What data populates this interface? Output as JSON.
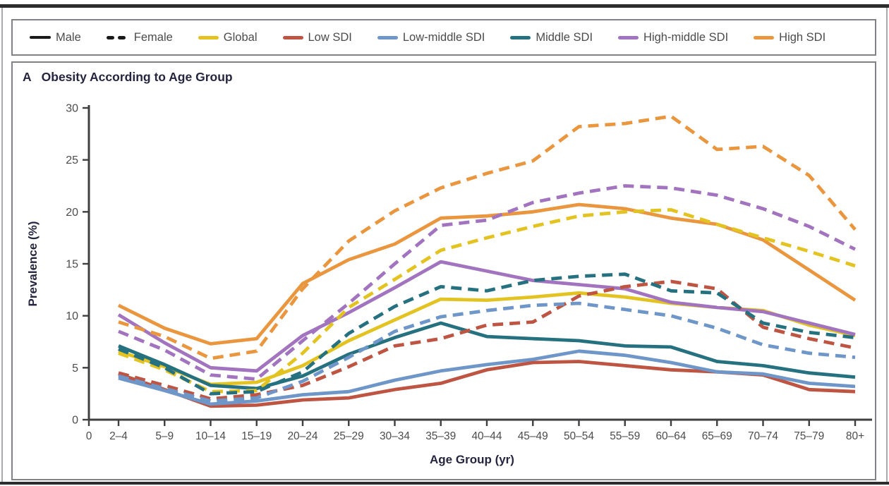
{
  "figure": {
    "panel_letter": "A",
    "panel_title": "Obesity According to Age Group"
  },
  "legend": {
    "items": [
      {
        "label": "Male",
        "swatch": "solid-line",
        "color": "#1a1a1a"
      },
      {
        "label": "Female",
        "swatch": "dashed-line",
        "color": "#1a1a1a"
      },
      {
        "label": "Global",
        "swatch": "line",
        "color": "#e3c321"
      },
      {
        "label": "Low SDI",
        "swatch": "line",
        "color": "#be5442"
      },
      {
        "label": "Low-middle SDI",
        "swatch": "line",
        "color": "#6e96c8"
      },
      {
        "label": "Middle SDI",
        "swatch": "line",
        "color": "#26717f"
      },
      {
        "label": "High-middle SDI",
        "swatch": "line",
        "color": "#a274bf"
      },
      {
        "label": "High SDI",
        "swatch": "line",
        "color": "#e9963f"
      }
    ]
  },
  "chart_data": {
    "type": "line",
    "title": "Obesity According to Age Group",
    "xlabel": "Age Group (yr)",
    "ylabel": "Prevalence (%)",
    "ylim": [
      0,
      30
    ],
    "yticks": [
      0,
      5,
      10,
      15,
      20,
      25,
      30
    ],
    "origin_label": "0",
    "grid": "off",
    "legend_position": "top",
    "categories": [
      "2–4",
      "5–9",
      "10–14",
      "15–19",
      "20–24",
      "25–29",
      "30–34",
      "35–39",
      "40–44",
      "45–49",
      "50–54",
      "55–59",
      "60–64",
      "65–69",
      "70–74",
      "75–79",
      "80+"
    ],
    "series": [
      {
        "name": "Global",
        "sex": "Male",
        "color": "#e3c321",
        "style": "solid",
        "values": [
          6.6,
          5.1,
          3.4,
          3.6,
          5.2,
          7.6,
          9.6,
          11.6,
          11.5,
          11.8,
          12.2,
          11.8,
          11.2,
          10.8,
          10.5,
          9.1,
          8.1
        ]
      },
      {
        "name": "Low SDI",
        "sex": "Male",
        "color": "#be5442",
        "style": "solid",
        "values": [
          4.4,
          2.9,
          1.3,
          1.4,
          1.9,
          2.1,
          2.9,
          3.5,
          4.8,
          5.5,
          5.6,
          5.2,
          4.8,
          4.6,
          4.3,
          2.9,
          2.7
        ]
      },
      {
        "name": "Low-middle SDI",
        "sex": "Male",
        "color": "#6e96c8",
        "style": "solid",
        "values": [
          4.0,
          2.8,
          1.5,
          1.8,
          2.4,
          2.7,
          3.8,
          4.7,
          5.3,
          5.8,
          6.6,
          6.2,
          5.5,
          4.6,
          4.4,
          3.5,
          3.2
        ]
      },
      {
        "name": "Middle SDI",
        "sex": "Male",
        "color": "#26717f",
        "style": "solid",
        "values": [
          7.1,
          5.3,
          3.3,
          3.0,
          4.2,
          6.3,
          7.9,
          9.3,
          8.0,
          7.8,
          7.6,
          7.1,
          7.0,
          5.6,
          5.2,
          4.5,
          4.1
        ]
      },
      {
        "name": "High-middle SDI",
        "sex": "Male",
        "color": "#a274bf",
        "style": "solid",
        "values": [
          10.1,
          7.4,
          5.0,
          4.7,
          8.1,
          10.3,
          12.7,
          15.2,
          14.3,
          13.4,
          13.0,
          12.6,
          11.3,
          10.8,
          10.4,
          9.3,
          8.2
        ]
      },
      {
        "name": "High SDI",
        "sex": "Male",
        "color": "#e9963f",
        "style": "solid",
        "values": [
          11.0,
          8.8,
          7.3,
          7.8,
          13.1,
          15.4,
          16.9,
          19.4,
          19.6,
          20.0,
          20.7,
          20.3,
          19.4,
          18.8,
          17.3,
          14.4,
          11.5
        ]
      },
      {
        "name": "Global",
        "sex": "Female",
        "color": "#e3c321",
        "style": "dashed",
        "values": [
          6.4,
          4.8,
          2.7,
          2.8,
          6.4,
          10.8,
          13.5,
          16.3,
          17.5,
          18.6,
          19.6,
          20.0,
          20.2,
          18.8,
          17.5,
          16.2,
          14.8
        ]
      },
      {
        "name": "Low SDI",
        "sex": "Female",
        "color": "#be5442",
        "style": "dashed",
        "values": [
          4.5,
          3.3,
          2.0,
          2.4,
          3.3,
          5.1,
          7.1,
          7.8,
          9.1,
          9.4,
          11.9,
          12.8,
          13.3,
          12.6,
          8.9,
          7.8,
          6.9
        ]
      },
      {
        "name": "Low-middle SDI",
        "sex": "Female",
        "color": "#6e96c8",
        "style": "dashed",
        "values": [
          4.2,
          3.0,
          1.8,
          2.1,
          3.7,
          6.0,
          8.5,
          9.9,
          10.5,
          11.0,
          11.2,
          10.6,
          10.0,
          8.8,
          7.2,
          6.4,
          6.0
        ]
      },
      {
        "name": "Middle SDI",
        "sex": "Female",
        "color": "#26717f",
        "style": "dashed",
        "values": [
          6.8,
          5.0,
          2.5,
          2.7,
          4.6,
          8.3,
          10.9,
          12.8,
          12.4,
          13.4,
          13.8,
          14.0,
          12.4,
          12.2,
          9.3,
          8.4,
          7.9
        ]
      },
      {
        "name": "High-middle SDI",
        "sex": "Female",
        "color": "#a274bf",
        "style": "dashed",
        "values": [
          8.5,
          6.7,
          4.3,
          3.9,
          7.6,
          11.2,
          15.0,
          18.7,
          19.2,
          20.9,
          21.8,
          22.5,
          22.3,
          21.6,
          20.3,
          18.6,
          16.4
        ]
      },
      {
        "name": "High SDI",
        "sex": "Female",
        "color": "#e9963f",
        "style": "dashed",
        "values": [
          9.4,
          8.0,
          5.9,
          6.6,
          12.6,
          17.2,
          20.1,
          22.3,
          23.7,
          24.9,
          28.2,
          28.5,
          29.2,
          26.0,
          26.3,
          23.5,
          18.3
        ]
      }
    ]
  }
}
